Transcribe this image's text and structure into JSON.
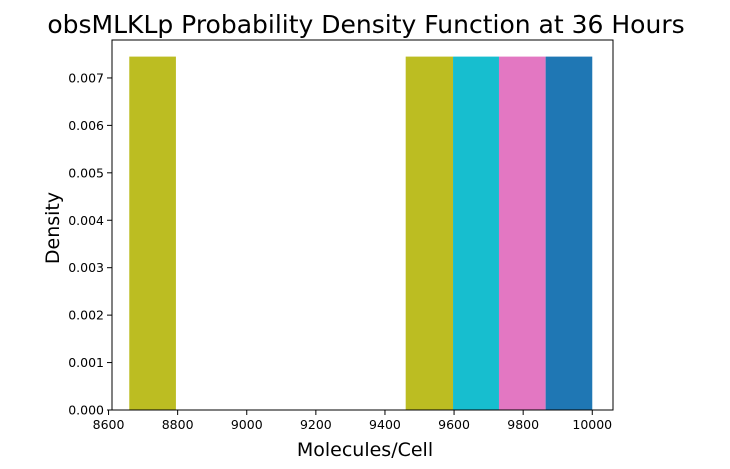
{
  "chart_data": {
    "type": "bar",
    "title": "obsMLKLp Probability Density Function at 36 Hours",
    "xlabel": "Molecules/Cell",
    "ylabel": "Density",
    "xlim": [
      8610,
      10060
    ],
    "ylim": [
      0,
      0.0078
    ],
    "xticks": [
      8600,
      8800,
      9000,
      9200,
      9400,
      9600,
      9800,
      10000
    ],
    "xtick_labels": [
      "8600",
      "8800",
      "9000",
      "9200",
      "9400",
      "9600",
      "9800",
      "10000"
    ],
    "yticks": [
      0.0,
      0.001,
      0.002,
      0.003,
      0.004,
      0.005,
      0.006,
      0.007
    ],
    "ytick_labels": [
      "0.000",
      "0.001",
      "0.002",
      "0.003",
      "0.004",
      "0.005",
      "0.006",
      "0.007"
    ],
    "grid": false,
    "bars": [
      {
        "x0": 8660,
        "x1": 8795,
        "density": 0.00745,
        "color": "#bcbd22"
      },
      {
        "x0": 9460,
        "x1": 9597,
        "density": 0.00745,
        "color": "#bcbd22"
      },
      {
        "x0": 9597,
        "x1": 9730,
        "density": 0.00745,
        "color": "#17becf"
      },
      {
        "x0": 9730,
        "x1": 9865,
        "density": 0.00745,
        "color": "#e377c2"
      },
      {
        "x0": 9865,
        "x1": 10000,
        "density": 0.00745,
        "color": "#1f77b4"
      }
    ]
  }
}
